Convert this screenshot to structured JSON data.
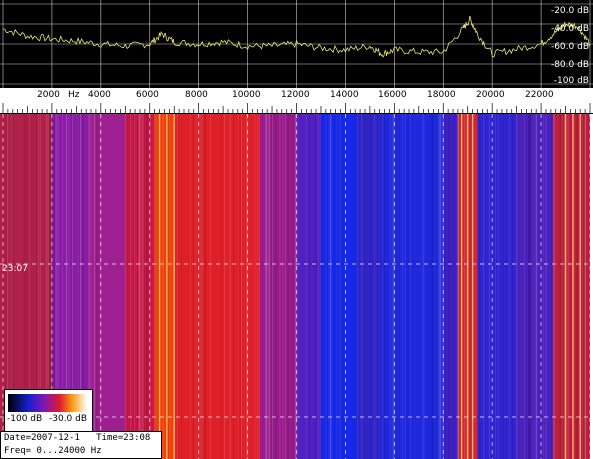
{
  "spectrum": {
    "db_labels": [
      "-20.0 dB",
      "-40.0 dB",
      "-60.0 dB",
      "-80.0 dB",
      "-100 dB"
    ],
    "colors": {
      "background": "#000000",
      "grid": "#ffffff",
      "trace": "#e8e870"
    }
  },
  "freq_axis": {
    "labels": [
      "2000",
      "Hz",
      "4000",
      "6000",
      "8000",
      "10000",
      "12000",
      "14000",
      "16000",
      "18000",
      "20000",
      "22000"
    ]
  },
  "waterfall": {
    "time_label": "23:07"
  },
  "legend": {
    "low_label": "-100 dB",
    "high_label": "-30.0 dB"
  },
  "info": {
    "date_label": "Date=",
    "date": "2007-12-1",
    "time_label": "Time=",
    "time": "23:08",
    "freq_label": "Freq=",
    "freq_range": "0...24000",
    "freq_unit": "Hz"
  },
  "chart_data": {
    "type": "heatmap",
    "title": "",
    "xlabel": "Hz",
    "ylabel": "",
    "x_range_hz": [
      0,
      24000
    ],
    "x_ticks": [
      2000,
      4000,
      6000,
      8000,
      10000,
      12000,
      14000,
      16000,
      18000,
      20000,
      22000
    ],
    "db_ticks": [
      -20,
      -40,
      -60,
      -80,
      -100
    ],
    "color_scale_db": [
      -100,
      -30
    ],
    "spectrum_series": {
      "name": "",
      "x_hz": [
        0,
        1000,
        2000,
        3000,
        4000,
        5000,
        6000,
        6500,
        7000,
        8000,
        9000,
        10000,
        11000,
        12000,
        13000,
        14000,
        15000,
        15500,
        16000,
        17000,
        18000,
        18800,
        19100,
        19400,
        20000,
        21000,
        22000,
        22600,
        23000,
        23500,
        24000
      ],
      "level_db": [
        -45,
        -52,
        -55,
        -57,
        -60,
        -62,
        -60,
        -50,
        -58,
        -60,
        -58,
        -62,
        -62,
        -60,
        -64,
        -66,
        -62,
        -70,
        -66,
        -68,
        -68,
        -45,
        -35,
        -50,
        -70,
        -65,
        -60,
        -48,
        -40,
        -42,
        -60
      ]
    },
    "waterfall_bands": [
      {
        "from_hz": 0,
        "to_hz": 2000,
        "color": "#b0204a"
      },
      {
        "from_hz": 2000,
        "to_hz": 3500,
        "color": "#8a1ca8"
      },
      {
        "from_hz": 3500,
        "to_hz": 5000,
        "color": "#9e2090"
      },
      {
        "from_hz": 5000,
        "to_hz": 6200,
        "color": "#c81848"
      },
      {
        "from_hz": 6200,
        "to_hz": 7000,
        "color": "#f04010"
      },
      {
        "from_hz": 7000,
        "to_hz": 10500,
        "color": "#e02028"
      },
      {
        "from_hz": 10500,
        "to_hz": 12000,
        "color": "#9a1c8c"
      },
      {
        "from_hz": 12000,
        "to_hz": 13000,
        "color": "#5020c0"
      },
      {
        "from_hz": 13000,
        "to_hz": 14500,
        "color": "#1828e8"
      },
      {
        "from_hz": 14500,
        "to_hz": 15500,
        "color": "#3024c8"
      },
      {
        "from_hz": 15500,
        "to_hz": 18000,
        "color": "#2028e0"
      },
      {
        "from_hz": 18000,
        "to_hz": 18600,
        "color": "#4020c8"
      },
      {
        "from_hz": 18600,
        "to_hz": 19400,
        "color": "#d02838"
      },
      {
        "from_hz": 19400,
        "to_hz": 21000,
        "color": "#3024d0"
      },
      {
        "from_hz": 21000,
        "to_hz": 22500,
        "color": "#4c20bc"
      },
      {
        "from_hz": 22500,
        "to_hz": 24000,
        "color": "#c02040"
      }
    ],
    "bright_lines_hz": [
      6400,
      6700,
      7000,
      18750,
      19000,
      19200,
      23000,
      23300,
      23600
    ]
  }
}
